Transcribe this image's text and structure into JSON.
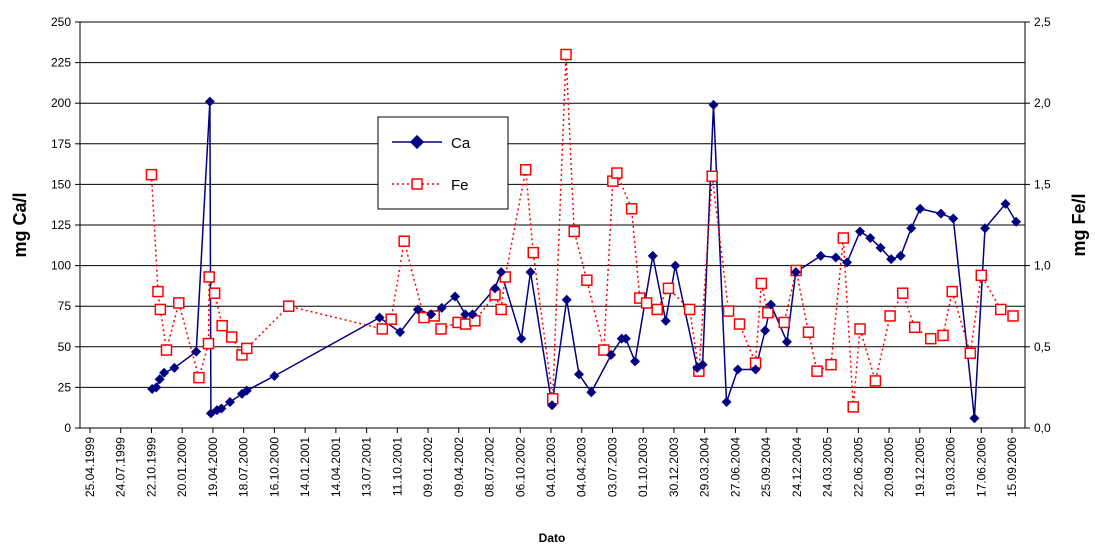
{
  "chart_data": {
    "type": "line",
    "title": "",
    "xlabel": "Dato",
    "ylabel_left": "mg Ca/l",
    "ylabel_right": "mg Fe/l",
    "x_ticks": [
      "25.04.1999",
      "24.07.1999",
      "22.10.1999",
      "20.01.2000",
      "19.04.2000",
      "18.07.2000",
      "16.10.2000",
      "14.01.2001",
      "14.04.2001",
      "13.07.2001",
      "11.10.2001",
      "09.01.2002",
      "09.04.2002",
      "08.07.2002",
      "06.10.2002",
      "04.01.2003",
      "04.04.2003",
      "03.07.2003",
      "01.10.2003",
      "30.12.2003",
      "29.03.2004",
      "27.06.2004",
      "25.09.2004",
      "24.12.2004",
      "24.03.2005",
      "22.06.2005",
      "20.09.2005",
      "19.12.2005",
      "19.03.2006",
      "17.06.2006",
      "15.09.2006"
    ],
    "y_left_ticks": [
      "0",
      "25",
      "50",
      "75",
      "100",
      "125",
      "150",
      "175",
      "200",
      "225",
      "250"
    ],
    "y_right_ticks": [
      "0,0",
      "0,5",
      "1,0",
      "1,5",
      "2,0",
      "2,5"
    ],
    "ylim_left": [
      0,
      250
    ],
    "ylim_right": [
      0,
      2.5
    ],
    "grid": "horizontal",
    "legend": "upper-middle",
    "colors": {
      "Ca": "#000080",
      "Fe": "#ff0000"
    },
    "series": [
      {
        "name": "Ca",
        "axis": "left",
        "style": "solid line with diamond markers",
        "points": [
          [
            "1999-10-24",
            24
          ],
          [
            "1999-11-05",
            25
          ],
          [
            "1999-11-15",
            30
          ],
          [
            "1999-11-28",
            34
          ],
          [
            "1999-12-28",
            37
          ],
          [
            "2000-03-01",
            47
          ],
          [
            "2000-04-10",
            201
          ],
          [
            "2000-04-13",
            9
          ],
          [
            "2000-05-01",
            11
          ],
          [
            "2000-05-14",
            12
          ],
          [
            "2000-06-08",
            16
          ],
          [
            "2000-07-13",
            21
          ],
          [
            "2000-07-27",
            23
          ],
          [
            "2000-10-16",
            32
          ],
          [
            "2001-08-20",
            68
          ],
          [
            "2001-10-19",
            59
          ],
          [
            "2001-12-10",
            73
          ],
          [
            "2002-01-18",
            70
          ],
          [
            "2002-02-18",
            74
          ],
          [
            "2002-03-29",
            81
          ],
          [
            "2002-04-28",
            70
          ],
          [
            "2002-05-19",
            70
          ],
          [
            "2002-07-24",
            86
          ],
          [
            "2002-08-11",
            96
          ],
          [
            "2002-10-09",
            55
          ],
          [
            "2002-11-05",
            96
          ],
          [
            "2003-01-07",
            14
          ],
          [
            "2003-02-19",
            79
          ],
          [
            "2003-03-27",
            33
          ],
          [
            "2003-05-02",
            22
          ],
          [
            "2003-06-29",
            45
          ],
          [
            "2003-07-30",
            55
          ],
          [
            "2003-08-11",
            55
          ],
          [
            "2003-09-07",
            41
          ],
          [
            "2003-10-29",
            106
          ],
          [
            "2003-12-06",
            66
          ],
          [
            "2004-01-03",
            100
          ],
          [
            "2004-03-07",
            37
          ],
          [
            "2004-03-23",
            39
          ],
          [
            "2004-04-24",
            199
          ],
          [
            "2004-06-01",
            16
          ],
          [
            "2004-07-04",
            36
          ],
          [
            "2004-08-25",
            36
          ],
          [
            "2004-09-22",
            60
          ],
          [
            "2004-10-09",
            76
          ],
          [
            "2004-11-25",
            53
          ],
          [
            "2004-12-21",
            96
          ],
          [
            "2005-03-04",
            106
          ],
          [
            "2005-04-17",
            105
          ],
          [
            "2005-05-20",
            102
          ],
          [
            "2005-06-27",
            121
          ],
          [
            "2005-07-27",
            117
          ],
          [
            "2005-08-26",
            111
          ],
          [
            "2005-09-26",
            104
          ],
          [
            "2005-10-24",
            106
          ],
          [
            "2005-11-24",
            123
          ],
          [
            "2005-12-20",
            135
          ],
          [
            "2006-02-19",
            132
          ],
          [
            "2006-03-27",
            129
          ],
          [
            "2006-05-28",
            6
          ],
          [
            "2006-06-28",
            123
          ],
          [
            "2006-08-27",
            138
          ],
          [
            "2006-09-27",
            127
          ]
        ]
      },
      {
        "name": "Fe",
        "axis": "right",
        "style": "dotted line with square markers",
        "points": [
          [
            "1999-10-22",
            1.56
          ],
          [
            "1999-11-10",
            0.84
          ],
          [
            "1999-11-17",
            0.73
          ],
          [
            "1999-12-05",
            0.48
          ],
          [
            "2000-01-10",
            0.77
          ],
          [
            "2000-03-09",
            0.31
          ],
          [
            "2000-04-06",
            0.52
          ],
          [
            "2000-04-08",
            0.93
          ],
          [
            "2000-04-24",
            0.83
          ],
          [
            "2000-05-16",
            0.63
          ],
          [
            "2000-06-13",
            0.56
          ],
          [
            "2000-07-13",
            0.45
          ],
          [
            "2000-07-27",
            0.49
          ],
          [
            "2000-11-27",
            0.75
          ],
          [
            "2001-08-28",
            0.61
          ],
          [
            "2001-09-23",
            0.67
          ],
          [
            "2001-10-31",
            1.15
          ],
          [
            "2001-12-28",
            0.68
          ],
          [
            "2002-01-27",
            0.69
          ],
          [
            "2002-02-16",
            0.61
          ],
          [
            "2002-04-07",
            0.65
          ],
          [
            "2002-04-29",
            0.64
          ],
          [
            "2002-05-26",
            0.66
          ],
          [
            "2002-07-24",
            0.82
          ],
          [
            "2002-08-11",
            0.73
          ],
          [
            "2002-08-23",
            0.93
          ],
          [
            "2002-10-22",
            1.59
          ],
          [
            "2002-11-13",
            1.08
          ],
          [
            "2003-01-09",
            0.18
          ],
          [
            "2003-02-17",
            2.3
          ],
          [
            "2003-03-13",
            1.21
          ],
          [
            "2003-04-19",
            0.91
          ],
          [
            "2003-06-08",
            0.48
          ],
          [
            "2003-07-04",
            1.52
          ],
          [
            "2003-07-16",
            1.57
          ],
          [
            "2003-08-28",
            1.35
          ],
          [
            "2003-09-21",
            0.8
          ],
          [
            "2003-10-11",
            0.77
          ],
          [
            "2003-11-11",
            0.73
          ],
          [
            "2003-12-14",
            0.86
          ],
          [
            "2004-02-14",
            0.73
          ],
          [
            "2004-03-12",
            0.35
          ],
          [
            "2004-04-20",
            1.55
          ],
          [
            "2004-06-07",
            0.72
          ],
          [
            "2004-07-09",
            0.64
          ],
          [
            "2004-08-25",
            0.4
          ],
          [
            "2004-09-11",
            0.89
          ],
          [
            "2004-09-30",
            0.71
          ],
          [
            "2004-11-17",
            0.65
          ],
          [
            "2004-12-22",
            0.97
          ],
          [
            "2005-01-27",
            0.59
          ],
          [
            "2005-02-21",
            0.35
          ],
          [
            "2005-04-03",
            0.39
          ],
          [
            "2005-05-09",
            1.17
          ],
          [
            "2005-06-07",
            0.13
          ],
          [
            "2005-06-27",
            0.61
          ],
          [
            "2005-08-11",
            0.29
          ],
          [
            "2005-09-23",
            0.69
          ],
          [
            "2005-10-30",
            0.83
          ],
          [
            "2005-12-04",
            0.62
          ],
          [
            "2006-01-20",
            0.55
          ],
          [
            "2006-02-25",
            0.57
          ],
          [
            "2006-03-24",
            0.84
          ],
          [
            "2006-05-16",
            0.46
          ],
          [
            "2006-06-17",
            0.94
          ],
          [
            "2006-08-13",
            0.73
          ],
          [
            "2006-09-18",
            0.69
          ]
        ]
      }
    ]
  }
}
